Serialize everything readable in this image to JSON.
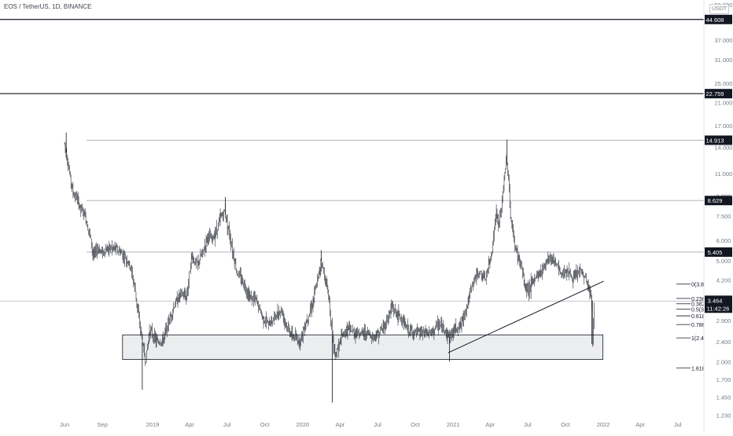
{
  "header": {
    "title": "EOS / TetherUS, 1D, BINANCE",
    "currency": "USDT"
  },
  "chart_data": {
    "type": "candlestick",
    "y_scale": "log",
    "ylim": [
      1.2,
      51
    ],
    "xlim": [
      "2018-05-28",
      "2022-08-05"
    ],
    "y_ticks": [
      {
        "value": 51,
        "label": "51.000"
      },
      {
        "value": 37,
        "label": "37.000"
      },
      {
        "value": 31,
        "label": "31.000"
      },
      {
        "value": 25,
        "label": "25.000"
      },
      {
        "value": 21,
        "label": "21.000"
      },
      {
        "value": 17,
        "label": "17.000"
      },
      {
        "value": 14,
        "label": "14.000"
      },
      {
        "value": 11,
        "label": "11.000"
      },
      {
        "value": 9.0,
        "label": "9.000"
      },
      {
        "value": 7.5,
        "label": "7.500"
      },
      {
        "value": 6.0,
        "label": "6.000"
      },
      {
        "value": 5.0,
        "label": "5.000"
      },
      {
        "value": 4.2,
        "label": "4.200"
      },
      {
        "value": 2.9,
        "label": "2.900"
      },
      {
        "value": 2.4,
        "label": "2.400"
      },
      {
        "value": 2.0,
        "label": "2.000"
      },
      {
        "value": 1.7,
        "label": "1.700"
      },
      {
        "value": 1.45,
        "label": "1.450"
      },
      {
        "value": 1.23,
        "label": "1.230"
      }
    ],
    "x_ticks": [
      {
        "date": "2018-06-01",
        "label": "Jun"
      },
      {
        "date": "2018-09-01",
        "label": "Sep"
      },
      {
        "date": "2019-01-01",
        "label": "2019"
      },
      {
        "date": "2019-04-01",
        "label": "Apr"
      },
      {
        "date": "2019-07-01",
        "label": "Jul"
      },
      {
        "date": "2019-10-01",
        "label": "Oct"
      },
      {
        "date": "2020-01-01",
        "label": "2020"
      },
      {
        "date": "2020-04-01",
        "label": "Apr"
      },
      {
        "date": "2020-07-01",
        "label": "Jul"
      },
      {
        "date": "2020-10-01",
        "label": "Oct"
      },
      {
        "date": "2021-01-01",
        "label": "2021"
      },
      {
        "date": "2021-04-01",
        "label": "Apr"
      },
      {
        "date": "2021-07-01",
        "label": "Jul"
      },
      {
        "date": "2021-10-01",
        "label": "Oct"
      },
      {
        "date": "2022-01-01",
        "label": "2022"
      },
      {
        "date": "2022-04-01",
        "label": "Apr"
      },
      {
        "date": "2022-07-01",
        "label": "Jul"
      }
    ],
    "price_series": {
      "dates": [
        "2018-06-01",
        "2018-06-08",
        "2018-06-15",
        "2018-06-22",
        "2018-07-01",
        "2018-07-10",
        "2018-07-20",
        "2018-08-01",
        "2018-08-10",
        "2018-08-20",
        "2018-09-01",
        "2018-09-15",
        "2018-10-01",
        "2018-10-15",
        "2018-11-01",
        "2018-11-10",
        "2018-11-20",
        "2018-11-28",
        "2018-12-07",
        "2018-12-15",
        "2018-12-25",
        "2019-01-10",
        "2019-01-25",
        "2019-02-10",
        "2019-02-25",
        "2019-03-10",
        "2019-03-25",
        "2019-04-05",
        "2019-04-20",
        "2019-05-05",
        "2019-05-15",
        "2019-05-25",
        "2019-06-05",
        "2019-06-15",
        "2019-06-25",
        "2019-07-05",
        "2019-07-15",
        "2019-07-25",
        "2019-08-10",
        "2019-08-25",
        "2019-09-10",
        "2019-09-25",
        "2019-10-10",
        "2019-10-25",
        "2019-11-10",
        "2019-11-25",
        "2019-12-10",
        "2019-12-25",
        "2020-01-10",
        "2020-01-25",
        "2020-02-05",
        "2020-02-15",
        "2020-02-25",
        "2020-03-05",
        "2020-03-12",
        "2020-03-20",
        "2020-04-05",
        "2020-04-20",
        "2020-05-05",
        "2020-05-20",
        "2020-06-05",
        "2020-06-20",
        "2020-07-05",
        "2020-07-20",
        "2020-08-05",
        "2020-08-15",
        "2020-08-25",
        "2020-09-10",
        "2020-09-25",
        "2020-10-10",
        "2020-10-25",
        "2020-11-10",
        "2020-11-25",
        "2020-12-10",
        "2020-12-23",
        "2021-01-05",
        "2021-01-20",
        "2021-02-05",
        "2021-02-20",
        "2021-03-05",
        "2021-03-20",
        "2021-04-05",
        "2021-04-15",
        "2021-04-22",
        "2021-04-30",
        "2021-05-10",
        "2021-05-15",
        "2021-05-20",
        "2021-06-01",
        "2021-06-15",
        "2021-06-25",
        "2021-07-05",
        "2021-07-20",
        "2021-08-05",
        "2021-08-20",
        "2021-09-05",
        "2021-09-20",
        "2021-10-05",
        "2021-10-20",
        "2021-11-05",
        "2021-11-20",
        "2021-11-28",
        "2021-12-04",
        "2021-12-06",
        "2021-12-10"
      ],
      "close": [
        14.5,
        12.5,
        10.5,
        9.2,
        8.8,
        8.0,
        7.6,
        6.4,
        5.2,
        5.6,
        5.4,
        5.6,
        5.6,
        5.4,
        5.0,
        4.6,
        3.8,
        3.0,
        2.4,
        2.0,
        2.7,
        2.4,
        2.4,
        2.9,
        3.4,
        3.7,
        3.6,
        5.2,
        4.8,
        5.5,
        6.3,
        6.0,
        6.6,
        7.4,
        7.8,
        6.7,
        5.4,
        4.5,
        4.1,
        3.6,
        3.5,
        3.0,
        2.8,
        3.0,
        3.2,
        2.7,
        2.5,
        2.4,
        2.9,
        3.4,
        4.1,
        5.0,
        4.2,
        3.6,
        2.6,
        2.1,
        2.5,
        2.7,
        2.6,
        2.6,
        2.6,
        2.5,
        2.6,
        2.8,
        3.3,
        3.1,
        3.0,
        2.7,
        2.6,
        2.6,
        2.6,
        2.6,
        2.8,
        2.7,
        2.5,
        2.7,
        2.8,
        3.4,
        4.2,
        4.5,
        4.2,
        5.4,
        7.8,
        6.8,
        8.6,
        12.5,
        11.0,
        7.5,
        5.6,
        4.8,
        3.9,
        3.9,
        4.3,
        4.6,
        5.2,
        5.0,
        4.4,
        4.6,
        4.2,
        4.6,
        4.2,
        3.8,
        3.5,
        2.45,
        3.46
      ]
    },
    "horizontal_levels": [
      {
        "value": 44.608,
        "label": "44.608",
        "style": "black"
      },
      {
        "value": 22.759,
        "label": "22.759",
        "style": "black"
      },
      {
        "value": 14.913,
        "label": "14.913",
        "style": "gray"
      },
      {
        "value": 8.629,
        "label": "8.629",
        "style": "gray"
      },
      {
        "value": 5.405,
        "label": "5.405",
        "style": "gray"
      }
    ],
    "current_price": {
      "value": 3.464,
      "label": "3.464",
      "countdown": "11:42:26"
    },
    "support_zone": {
      "from_date": "2018-10-20",
      "to_date": "2021-12-31",
      "low": 2.04,
      "high": 2.55
    },
    "trendline": {
      "start_date": "2020-12-20",
      "start_value": 2.17,
      "end_date": "2022-01-02",
      "end_value": 4.15
    },
    "fib_levels": [
      {
        "value": 4.05,
        "label": "0(3.8"
      },
      {
        "value": 3.55,
        "label": "0.236"
      },
      {
        "value": 3.38,
        "label": "0.382"
      },
      {
        "value": 3.22,
        "label": "0.5(3"
      },
      {
        "value": 3.03,
        "label": "0.618"
      },
      {
        "value": 2.8,
        "label": "0.786"
      },
      {
        "value": 2.48,
        "label": "1(2.4"
      },
      {
        "value": 1.89,
        "label": "1.618"
      }
    ]
  }
}
